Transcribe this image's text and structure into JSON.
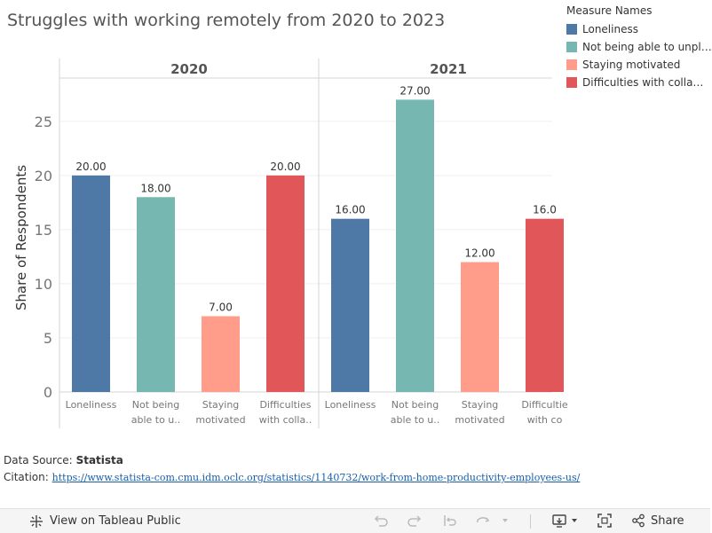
{
  "title": "Struggles with working remotely from 2020 to 2023",
  "legend": {
    "title": "Measure Names",
    "items": [
      {
        "label": "Loneliness",
        "color": "#4e79a7"
      },
      {
        "label": "Not being able to unpl…",
        "color": "#76b7b2"
      },
      {
        "label": "Staying motivated",
        "color": "#ff9d8a"
      },
      {
        "label": "Difficulties with colla…",
        "color": "#e15759"
      }
    ]
  },
  "source": {
    "label": "Data Source:",
    "name": "Statista",
    "citation_label": "Citation:",
    "citation_url": "https://www.statista-com.cmu.idm.oclc.org/statistics/1140732/work-from-home-productivity-employees-us/"
  },
  "toolbar": {
    "view_label": "View on Tableau Public",
    "share_label": "Share"
  },
  "chart_data": {
    "type": "bar",
    "ylabel": "Share of Respondents",
    "ylim": [
      0,
      29
    ],
    "yticks": [
      0,
      5,
      10,
      15,
      20,
      25
    ],
    "panels": [
      {
        "year": "2020",
        "categories": [
          [
            "Loneliness"
          ],
          [
            "Not being",
            "able to u.."
          ],
          [
            "Staying",
            "motivated"
          ],
          [
            "Difficulties",
            "with colla.."
          ]
        ],
        "values": [
          20.0,
          18.0,
          7.0,
          20.0
        ],
        "labels": [
          "20.00",
          "18.00",
          "7.00",
          "20.00"
        ]
      },
      {
        "year": "2021",
        "categories": [
          [
            "Loneliness"
          ],
          [
            "Not being",
            "able to u.."
          ],
          [
            "Staying",
            "motivated"
          ],
          [
            "Difficultie",
            "with co"
          ]
        ],
        "values": [
          16.0,
          27.0,
          12.0,
          16.0
        ],
        "labels": [
          "16.00",
          "27.00",
          "12.00",
          "16.0"
        ]
      }
    ],
    "colors": [
      "#4e79a7",
      "#76b7b2",
      "#ff9d8a",
      "#e15759"
    ]
  }
}
